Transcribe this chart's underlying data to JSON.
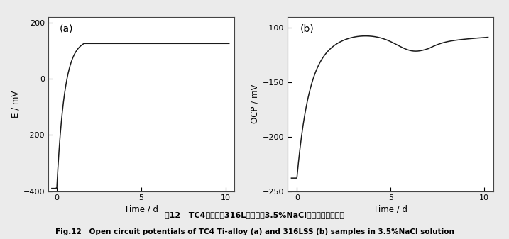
{
  "panel_a": {
    "label": "(a)",
    "ylabel": "E / mV",
    "xlabel": "Time / d",
    "xlim": [
      -0.5,
      10.5
    ],
    "ylim": [
      -400,
      220
    ],
    "yticks": [
      -400,
      -200,
      0,
      200
    ],
    "xticks": [
      0,
      5,
      10
    ]
  },
  "panel_b": {
    "label": "(b)",
    "ylabel": "OCP / mV",
    "xlabel": "Time / d",
    "xlim": [
      -0.5,
      10.5
    ],
    "ylim": [
      -250,
      -90
    ],
    "yticks": [
      -250,
      -200,
      -150,
      -100
    ],
    "xticks": [
      0,
      5,
      10
    ]
  },
  "caption_zh": "图12   TC4钓合金和316L不锈钑在3.5%NaCl溶液中的开路电位",
  "caption_en": "Fig.12   Open circuit potentials of TC4 Ti-alloy (a) and 316LSS (b) samples in 3.5%NaCl solution",
  "line_color": "#1a1a1a",
  "plot_bg": "#ffffff",
  "fig_bg": "#ebebeb"
}
